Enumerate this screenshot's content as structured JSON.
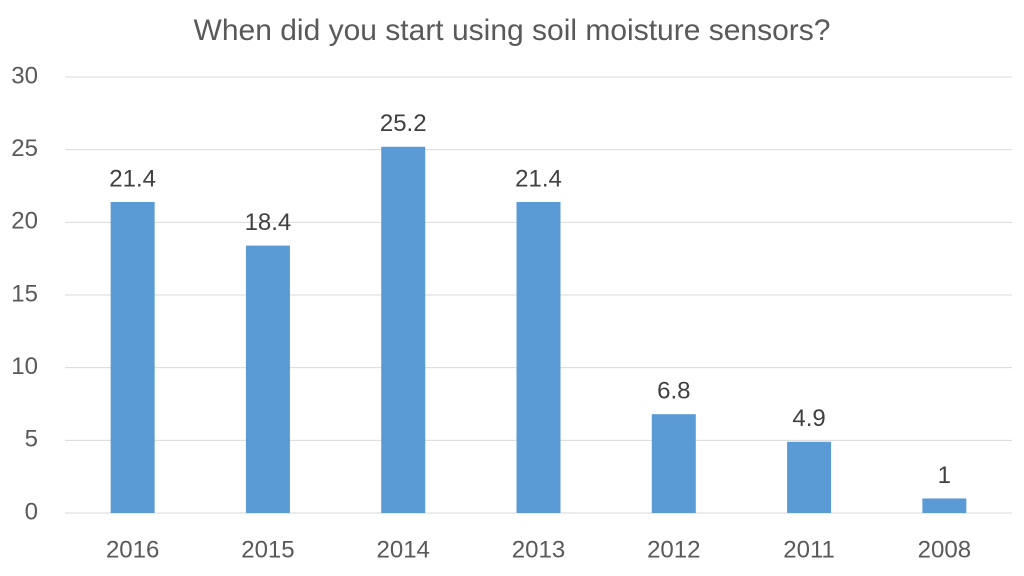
{
  "chart_data": {
    "type": "bar",
    "title": "When did you start using soil moisture sensors?",
    "categories": [
      "2016",
      "2015",
      "2014",
      "2013",
      "2012",
      "2011",
      "2008"
    ],
    "values": [
      21.4,
      18.4,
      25.2,
      21.4,
      6.8,
      4.9,
      1
    ],
    "color": "#5b9bd5",
    "ylim": [
      0,
      30
    ],
    "yticks": [
      0,
      5,
      10,
      15,
      20,
      25,
      30
    ],
    "grid": true,
    "data_labels": true
  }
}
